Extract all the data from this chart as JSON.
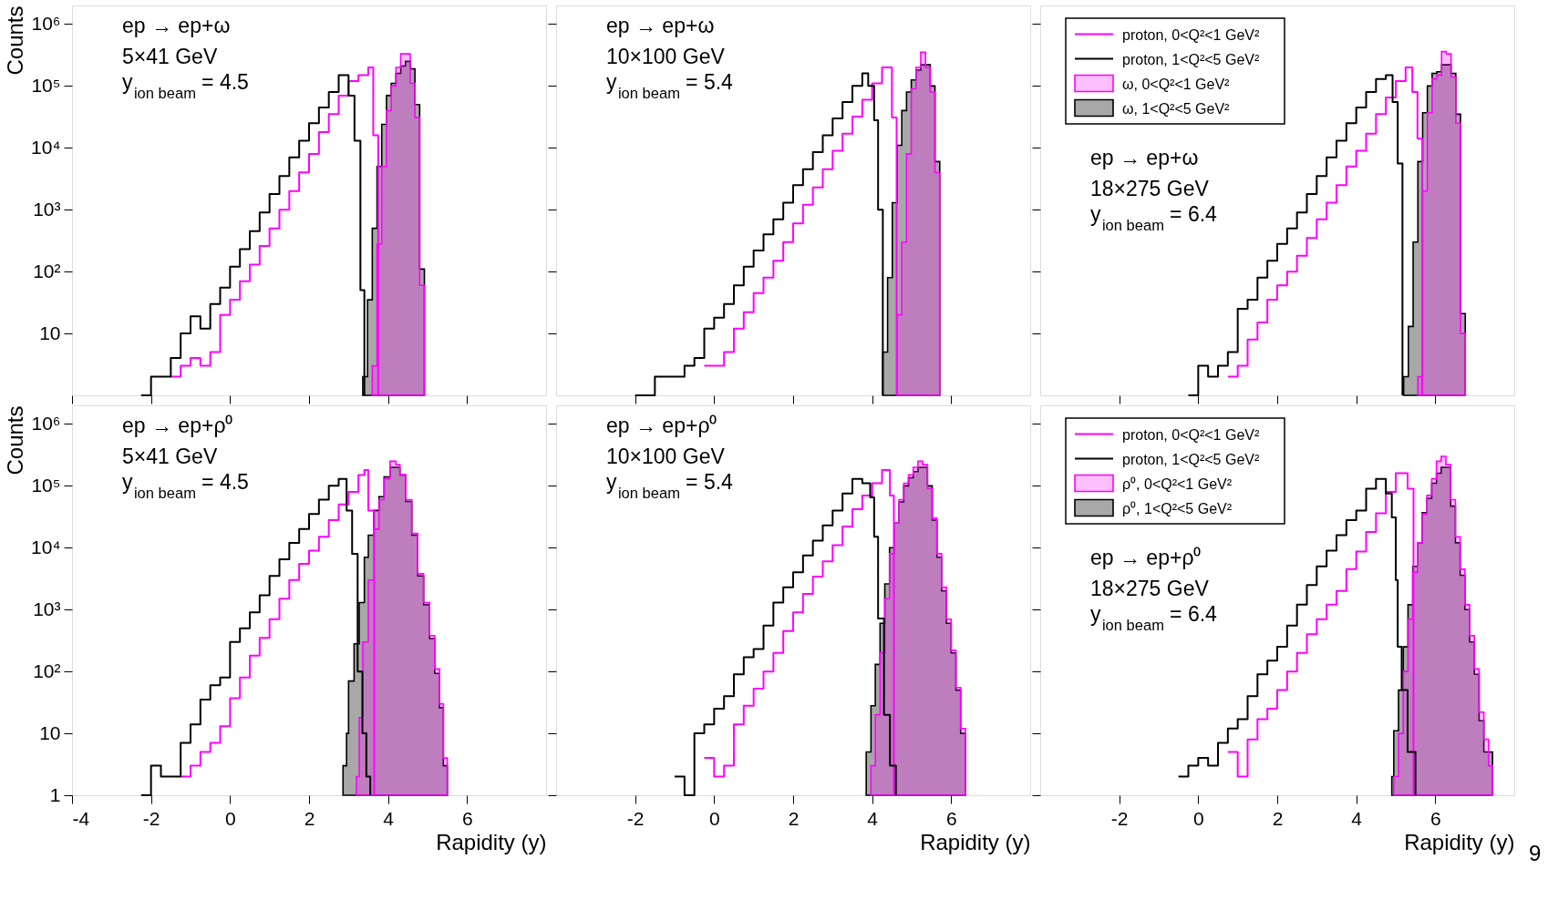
{
  "chart_data": [
    {
      "type": "step",
      "log": true,
      "xlim": [
        -4,
        8
      ],
      "ylim": [
        1,
        2000000
      ],
      "tick_labels": "y",
      "ylabel": "Counts",
      "xticks": [
        -4,
        -2,
        0,
        2,
        4,
        6
      ],
      "yticks": [
        10,
        {
          "value": 100,
          "label": "10²"
        },
        {
          "value": 1000,
          "label": "10³"
        },
        {
          "value": 10000,
          "label": "10⁴"
        },
        {
          "value": 100000,
          "label": "10⁵"
        },
        {
          "value": 1000000,
          "label": "10⁶"
        }
      ],
      "annotations": [
        "ep → ep+ω",
        "5×41 GeV",
        "y$_{ion beam}$ = 4.5"
      ],
      "series": [
        {
          "type": "step",
          "color": "#ff00ff",
          "x": [
            -1.5,
            -1.25,
            -1.0,
            -0.75,
            -0.5,
            -0.25,
            0,
            0.25,
            0.5,
            0.75,
            1.0,
            1.25,
            1.5,
            1.75,
            2.0,
            2.25,
            2.5,
            2.75,
            3.0,
            3.25,
            3.5,
            3.625,
            3.75
          ],
          "values": [
            2,
            3,
            4,
            3,
            5,
            20,
            35,
            70,
            130,
            260,
            500,
            1000,
            2000,
            4000,
            8000,
            18000,
            35000,
            70000,
            120000,
            150000,
            200000,
            16000,
            1
          ]
        },
        {
          "type": "step",
          "color": "#000000",
          "x": [
            -2.25,
            -2.0,
            -1.75,
            -1.5,
            -1.25,
            -1.0,
            -0.75,
            -0.5,
            -0.25,
            0,
            0.25,
            0.5,
            0.75,
            1.0,
            1.25,
            1.5,
            1.75,
            2.0,
            2.25,
            2.5,
            2.75,
            3.0,
            3.15,
            3.3,
            3.4
          ],
          "values": [
            1,
            2,
            2,
            4,
            10,
            19,
            12,
            30,
            55,
            120,
            230,
            450,
            900,
            1800,
            3500,
            7000,
            13000,
            25000,
            45000,
            80000,
            150000,
            70000,
            13000,
            50,
            1
          ]
        },
        {
          "type": "area",
          "color": "#ff00ff",
          "x": [
            3.6,
            3.72,
            3.84,
            3.96,
            4.08,
            4.2,
            4.32,
            4.44,
            4.56,
            4.68,
            4.8,
            4.92
          ],
          "values": [
            3,
            280,
            5000,
            40000,
            100000,
            200000,
            330000,
            330000,
            110000,
            31000,
            60,
            1
          ]
        },
        {
          "type": "area",
          "color": "#a8a8a8",
          "x": [
            3.36,
            3.48,
            3.6,
            3.72,
            3.84,
            3.96,
            4.08,
            4.2,
            4.32,
            4.44,
            4.56,
            4.68,
            4.8,
            4.92
          ],
          "values": [
            2,
            35,
            500,
            5000,
            24000,
            70000,
            110000,
            160000,
            210000,
            250000,
            190000,
            50000,
            110,
            1
          ]
        }
      ]
    },
    {
      "type": "step",
      "log": true,
      "xlim": [
        -4,
        8
      ],
      "ylim": [
        1,
        2000000
      ],
      "tick_labels": false,
      "xticks": [
        -2,
        0,
        2,
        4,
        6
      ],
      "yticks": [
        10,
        100,
        1000,
        10000,
        100000,
        1000000
      ],
      "annotations": [
        "ep → ep+ω",
        "10×100 GeV",
        "y$_{ion beam}$ = 5.4"
      ],
      "series": [
        {
          "type": "step",
          "color": "#ff00ff",
          "x": [
            -0.25,
            0,
            0.25,
            0.5,
            0.75,
            1.0,
            1.25,
            1.5,
            1.75,
            2.0,
            2.25,
            2.5,
            2.75,
            3.0,
            3.25,
            3.5,
            3.75,
            4.0,
            4.25,
            4.5,
            4.62
          ],
          "values": [
            3,
            3,
            5,
            12,
            22,
            45,
            80,
            150,
            300,
            600,
            1200,
            2300,
            4500,
            9000,
            17000,
            32000,
            60000,
            110000,
            200000,
            31000,
            1
          ]
        },
        {
          "type": "step",
          "color": "#000000",
          "x": [
            -2.0,
            -1.5,
            -1.0,
            -0.75,
            -0.5,
            -0.25,
            0,
            0.25,
            0.5,
            0.75,
            1.0,
            1.25,
            1.5,
            1.75,
            2.0,
            2.25,
            2.5,
            2.75,
            3.0,
            3.25,
            3.5,
            3.75,
            3.9,
            4.05,
            4.15,
            4.27
          ],
          "values": [
            1,
            2,
            2,
            3,
            4,
            12,
            18,
            30,
            60,
            120,
            220,
            400,
            700,
            1300,
            2500,
            4500,
            8500,
            16000,
            30000,
            55000,
            100000,
            160000,
            100000,
            28000,
            1000,
            1
          ]
        },
        {
          "type": "area",
          "color": "#ff00ff",
          "x": [
            4.63,
            4.75,
            4.87,
            4.99,
            5.11,
            5.23,
            5.35,
            5.47,
            5.59,
            5.71
          ],
          "values": [
            20,
            300,
            8000,
            90000,
            200000,
            350000,
            200000,
            80000,
            4000,
            1
          ]
        },
        {
          "type": "area",
          "color": "#a8a8a8",
          "x": [
            4.27,
            4.39,
            4.51,
            4.63,
            4.75,
            4.87,
            4.99,
            5.11,
            5.23,
            5.35,
            5.47,
            5.59,
            5.71
          ],
          "values": [
            5,
            80,
            1300,
            11000,
            40000,
            80000,
            125000,
            180000,
            220000,
            220000,
            100000,
            6000,
            1
          ]
        }
      ]
    },
    {
      "type": "step",
      "log": true,
      "xlim": [
        -4,
        8
      ],
      "ylim": [
        1,
        2000000
      ],
      "tick_labels": false,
      "legend": "top left",
      "xticks": [
        -2,
        0,
        2,
        4,
        6
      ],
      "yticks": [
        10,
        100,
        1000,
        10000,
        100000,
        1000000
      ],
      "annotations": [
        "ep → ep+ω",
        "18×275 GeV",
        "y$_{ion beam}$ = 6.4"
      ],
      "series": [
        {
          "type": "step",
          "name": "proton, 0<Q²<1 GeV²",
          "color": "#ff00ff",
          "x": [
            0.75,
            1.0,
            1.25,
            1.5,
            1.75,
            2.0,
            2.25,
            2.5,
            2.75,
            3.0,
            3.25,
            3.5,
            3.75,
            4.0,
            4.25,
            4.5,
            4.75,
            5.0,
            5.25,
            5.42,
            5.55,
            5.67
          ],
          "values": [
            2,
            3,
            8,
            15,
            35,
            60,
            100,
            180,
            350,
            700,
            1300,
            2500,
            5000,
            9000,
            17000,
            35000,
            65000,
            120000,
            200000,
            80000,
            14000,
            1
          ]
        },
        {
          "type": "step",
          "name": "proton, 1<Q²<5 GeV²",
          "color": "#000000",
          "x": [
            -0.25,
            0,
            0.25,
            0.5,
            0.75,
            1.0,
            1.25,
            1.5,
            1.75,
            2.0,
            2.25,
            2.5,
            2.75,
            3.0,
            3.25,
            3.5,
            3.75,
            4.0,
            4.25,
            4.5,
            4.75,
            4.92,
            5.05,
            5.17
          ],
          "values": [
            1,
            3,
            2,
            3,
            5,
            25,
            35,
            80,
            150,
            280,
            500,
            900,
            1800,
            3500,
            7000,
            13000,
            25000,
            45000,
            80000,
            130000,
            150000,
            55000,
            5600,
            1
          ]
        },
        {
          "type": "area",
          "name": "ω, 0<Q²<1 GeV²",
          "color": "#ff00ff",
          "x": [
            5.56,
            5.68,
            5.8,
            5.92,
            6.04,
            6.16,
            6.28,
            6.4,
            6.52,
            6.64,
            6.76
          ],
          "values": [
            2,
            2000,
            37000,
            130000,
            150000,
            360000,
            330000,
            140000,
            25000,
            10,
            1
          ]
        },
        {
          "type": "area",
          "name": "ω, 1<Q²<5 GeV²",
          "color": "#a8a8a8",
          "x": [
            5.2,
            5.32,
            5.44,
            5.56,
            5.68,
            5.8,
            5.92,
            6.04,
            6.16,
            6.28,
            6.4,
            6.52,
            6.64,
            6.76
          ],
          "values": [
            2,
            13,
            300,
            6000,
            37000,
            100000,
            160000,
            170000,
            220000,
            220000,
            160000,
            35000,
            21,
            1
          ]
        }
      ]
    },
    {
      "type": "step",
      "log": true,
      "xlim": [
        -4,
        8
      ],
      "ylim": [
        1,
        2000000
      ],
      "ylabel": "Counts",
      "xlabel": "Rapidity (y)",
      "xticks": [
        -4,
        -2,
        0,
        2,
        4,
        6
      ],
      "yticks": [
        1,
        10,
        {
          "value": 100,
          "label": "10²"
        },
        {
          "value": 1000,
          "label": "10³"
        },
        {
          "value": 10000,
          "label": "10⁴"
        },
        {
          "value": 100000,
          "label": "10⁵"
        },
        {
          "value": 1000000,
          "label": "10⁶"
        }
      ],
      "annotations": [
        "ep → ep+ρ⁰",
        "5×41 GeV",
        "y$_{ion beam}$ = 4.5"
      ],
      "series": [
        {
          "type": "step",
          "color": "#ff00ff",
          "x": [
            -1.25,
            -1.0,
            -0.75,
            -0.5,
            -0.25,
            0,
            0.25,
            0.5,
            0.75,
            1.0,
            1.25,
            1.5,
            1.75,
            2.0,
            2.25,
            2.5,
            2.75,
            3.0,
            3.25,
            3.4,
            3.5,
            3.65
          ],
          "values": [
            2,
            3,
            5,
            7,
            13,
            37,
            80,
            180,
            350,
            700,
            1500,
            3000,
            5500,
            9000,
            15000,
            28000,
            50000,
            80000,
            150000,
            180000,
            40000,
            1
          ]
        },
        {
          "type": "step",
          "color": "#000000",
          "x": [
            -2.25,
            -2.0,
            -1.75,
            -1.5,
            -1.25,
            -1.0,
            -0.75,
            -0.5,
            -0.25,
            0,
            0.25,
            0.5,
            0.75,
            1.0,
            1.25,
            1.5,
            1.75,
            2.0,
            2.25,
            2.5,
            2.75,
            2.95,
            3.09,
            3.23,
            3.35,
            3.45,
            3.55
          ],
          "values": [
            1,
            3,
            2,
            2,
            7,
            14,
            35,
            60,
            80,
            300,
            500,
            900,
            1700,
            3500,
            6500,
            12000,
            20000,
            35000,
            60000,
            100000,
            130000,
            40000,
            8000,
            100,
            10,
            2,
            1
          ]
        },
        {
          "type": "area",
          "color": "#ff00ff",
          "x": [
            3.2,
            3.27,
            3.36,
            3.5,
            3.64,
            3.77,
            3.9,
            4.05,
            4.2,
            4.3,
            4.45,
            4.6,
            4.75,
            4.9,
            5.05,
            5.18,
            5.3,
            5.4,
            5.5
          ],
          "values": [
            2,
            18,
            300,
            3000,
            20000,
            60000,
            130000,
            250000,
            220000,
            150000,
            60000,
            17000,
            3800,
            1300,
            380,
            110,
            30,
            4,
            1
          ]
        },
        {
          "type": "area",
          "color": "#a8a8a8",
          "x": [
            2.86,
            2.95,
            3.0,
            3.14,
            3.27,
            3.4,
            3.5,
            3.64,
            3.77,
            3.9,
            4.05,
            4.3,
            4.45,
            4.6,
            4.75,
            4.9,
            5.05,
            5.18,
            5.3,
            5.4,
            5.5
          ],
          "values": [
            3,
            10,
            70,
            280,
            1300,
            7000,
            16000,
            40000,
            67000,
            140000,
            200000,
            150000,
            56000,
            16000,
            3500,
            1200,
            340,
            93,
            26,
            3,
            1
          ]
        }
      ]
    },
    {
      "type": "step",
      "log": true,
      "xlim": [
        -4,
        8
      ],
      "ylim": [
        1,
        2000000
      ],
      "tick_labels": "x",
      "xlabel": "Rapidity (y)",
      "xticks": [
        -2,
        0,
        2,
        4,
        6
      ],
      "yticks": [
        1,
        10,
        100,
        1000,
        10000,
        100000,
        1000000
      ],
      "annotations": [
        "ep → ep+ρ⁰",
        "10×100 GeV",
        "y$_{ion beam}$ = 5.4"
      ],
      "series": [
        {
          "type": "step",
          "color": "#ff00ff",
          "x": [
            -0.25,
            0,
            0.25,
            0.5,
            0.75,
            1.0,
            1.25,
            1.5,
            1.75,
            2.0,
            2.25,
            2.5,
            2.75,
            3.0,
            3.25,
            3.5,
            3.75,
            4.0,
            4.25,
            4.45,
            4.55
          ],
          "values": [
            4,
            2,
            3,
            14,
            28,
            53,
            100,
            200,
            450,
            900,
            1800,
            3400,
            6000,
            11000,
            22000,
            42000,
            70000,
            110000,
            180000,
            70000,
            1
          ]
        },
        {
          "type": "step",
          "color": "#000000",
          "x": [
            -1.0,
            -0.75,
            -0.5,
            -0.25,
            0,
            0.25,
            0.5,
            0.75,
            1.0,
            1.25,
            1.5,
            1.75,
            2.0,
            2.25,
            2.5,
            2.75,
            3.0,
            3.25,
            3.5,
            3.75,
            3.95,
            4.05,
            4.15,
            4.3,
            4.45,
            4.6
          ],
          "values": [
            2,
            1,
            10,
            14,
            25,
            40,
            90,
            170,
            230,
            550,
            1300,
            2300,
            4000,
            7500,
            13000,
            23000,
            40000,
            75000,
            130000,
            110000,
            65000,
            15000,
            720,
            20,
            3,
            1
          ]
        },
        {
          "type": "area",
          "color": "#ff00ff",
          "x": [
            3.97,
            4.08,
            4.2,
            4.32,
            4.44,
            4.56,
            4.68,
            4.8,
            4.92,
            5.04,
            5.16,
            5.28,
            5.4,
            5.52,
            5.64,
            5.76,
            5.88,
            6.0,
            6.12,
            6.24,
            6.36
          ],
          "values": [
            3,
            20,
            200,
            1500,
            8000,
            25000,
            60000,
            110000,
            150000,
            200000,
            250000,
            220000,
            90000,
            30000,
            8000,
            2300,
            700,
            220,
            55,
            12,
            1
          ]
        },
        {
          "type": "area",
          "color": "#a8a8a8",
          "x": [
            3.85,
            3.97,
            4.08,
            4.2,
            4.32,
            4.44,
            4.56,
            4.68,
            4.8,
            4.92,
            5.04,
            5.16,
            5.28,
            5.4,
            5.52,
            5.64,
            5.76,
            5.88,
            6.0,
            6.12,
            6.24,
            6.36
          ],
          "values": [
            5,
            28,
            130,
            600,
            2600,
            10000,
            25000,
            55000,
            100000,
            135000,
            170000,
            200000,
            200000,
            100000,
            28000,
            7000,
            2000,
            600,
            200,
            50,
            10,
            1
          ]
        }
      ]
    },
    {
      "type": "step",
      "log": true,
      "xlim": [
        -4,
        8
      ],
      "ylim": [
        1,
        2000000
      ],
      "tick_labels": "x",
      "xlabel": "Rapidity (y)",
      "legend": "top left",
      "xticks": [
        -2,
        0,
        2,
        4,
        6
      ],
      "yticks": [
        1,
        10,
        100,
        1000,
        10000,
        100000,
        1000000
      ],
      "annotations": [
        "ep → ep+ρ⁰",
        "18×275 GeV",
        "y$_{ion beam}$ = 6.4",
        "9"
      ],
      "series": [
        {
          "type": "step",
          "name": "proton, 0<Q²<1 GeV²",
          "color": "#ff00ff",
          "x": [
            0.75,
            1.0,
            1.25,
            1.5,
            1.75,
            2.0,
            2.25,
            2.5,
            2.75,
            3.0,
            3.25,
            3.5,
            3.75,
            4.0,
            4.25,
            4.5,
            4.75,
            5.0,
            5.3,
            5.45
          ],
          "values": [
            5,
            2,
            8,
            17,
            25,
            50,
            100,
            200,
            400,
            700,
            1200,
            2000,
            4500,
            8700,
            18000,
            36000,
            80000,
            160000,
            90000,
            1
          ]
        },
        {
          "type": "step",
          "name": "proton, 1<Q²<5 GeV²",
          "color": "#000000",
          "x": [
            -0.5,
            -0.25,
            0,
            0.25,
            0.5,
            0.75,
            1.0,
            1.25,
            1.5,
            1.75,
            2.0,
            2.25,
            2.5,
            2.75,
            3.0,
            3.25,
            3.5,
            3.75,
            4.0,
            4.25,
            4.5,
            4.75,
            4.9,
            5.0,
            5.05,
            5.15,
            5.3,
            5.5
          ],
          "values": [
            2,
            3,
            4,
            3,
            7,
            12,
            17,
            40,
            90,
            150,
            250,
            550,
            1200,
            2500,
            5000,
            9000,
            16000,
            28000,
            40000,
            90000,
            130000,
            75000,
            31000,
            3000,
            250,
            50,
            5,
            1
          ]
        },
        {
          "type": "area",
          "name": "ρ⁰, 0<Q²<1 GeV²",
          "color": "#ff00ff",
          "x": [
            4.95,
            5.07,
            5.19,
            5.31,
            5.43,
            5.55,
            5.67,
            5.79,
            5.91,
            6.03,
            6.15,
            6.27,
            6.39,
            6.51,
            6.63,
            6.75,
            6.87,
            6.99,
            7.11,
            7.23,
            7.35,
            7.45
          ],
          "values": [
            2,
            10,
            100,
            700,
            4000,
            12000,
            35000,
            70000,
            130000,
            250000,
            300000,
            220000,
            60000,
            15000,
            4500,
            1200,
            380,
            110,
            22,
            8,
            3,
            1
          ]
        },
        {
          "type": "area",
          "name": "ρ⁰, 1<Q²<5 GeV²",
          "color": "#a8a8a8",
          "x": [
            4.9,
            4.95,
            5.07,
            5.19,
            5.31,
            5.43,
            5.55,
            5.67,
            5.79,
            5.91,
            6.03,
            6.15,
            6.27,
            6.39,
            6.51,
            6.63,
            6.75,
            6.87,
            6.99,
            7.11,
            7.23,
            7.45
          ],
          "values": [
            2,
            11,
            50,
            250,
            1200,
            5000,
            12000,
            37000,
            63000,
            110000,
            160000,
            200000,
            200000,
            47000,
            12000,
            3600,
            1000,
            300,
            90,
            16,
            5,
            1
          ]
        }
      ]
    }
  ]
}
